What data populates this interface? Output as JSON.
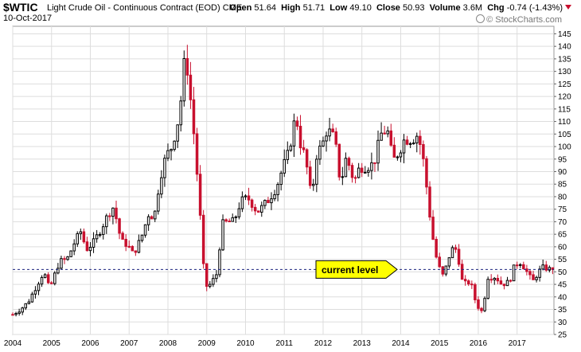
{
  "header": {
    "symbol": "$WTIC",
    "description": "Light Crude Oil - Continuous Contract (EOD)",
    "exchange": "CME",
    "date": "10-Oct-2017",
    "open_label": "Open",
    "open": "51.64",
    "high_label": "High",
    "high": "51.71",
    "low_label": "Low",
    "low": "49.10",
    "close_label": "Close",
    "close": "50.93",
    "volume_label": "Volume",
    "volume": "3.6M",
    "chg_label": "Chg",
    "chg": "-0.74 (-1.43%)",
    "brand": "© StockCharts.com"
  },
  "annotation": {
    "text": "current level",
    "level": 50.93
  },
  "colors": {
    "up": "#000000",
    "down": "#c8102e",
    "callout": "#ffff00",
    "grid": "#dddddd",
    "level_line": "#1a237e"
  },
  "chart_data": {
    "type": "candlestick",
    "interval": "monthly",
    "series_name": "$WTIC",
    "ylim": [
      25,
      148
    ],
    "y_ticks": [
      25,
      30,
      35,
      40,
      45,
      50,
      55,
      60,
      65,
      70,
      75,
      80,
      85,
      90,
      95,
      100,
      105,
      110,
      115,
      120,
      125,
      130,
      135,
      140,
      145
    ],
    "x_labels": [
      "2004",
      "2005",
      "2006",
      "2007",
      "2008",
      "2009",
      "2010",
      "2011",
      "2012",
      "2013",
      "2014",
      "2015",
      "2016",
      "2017"
    ],
    "x_start": 2004.0,
    "x_end": 2017.95,
    "close_points": [
      [
        2004.0,
        33
      ],
      [
        2004.2,
        35
      ],
      [
        2004.4,
        38
      ],
      [
        2004.6,
        44
      ],
      [
        2004.8,
        50
      ],
      [
        2004.95,
        43
      ],
      [
        2005.2,
        54
      ],
      [
        2005.4,
        55
      ],
      [
        2005.6,
        62
      ],
      [
        2005.75,
        66
      ],
      [
        2005.9,
        59
      ],
      [
        2006.1,
        62
      ],
      [
        2006.3,
        68
      ],
      [
        2006.5,
        74
      ],
      [
        2006.6,
        76
      ],
      [
        2006.8,
        62
      ],
      [
        2006.95,
        61
      ],
      [
        2007.1,
        57
      ],
      [
        2007.3,
        63
      ],
      [
        2007.5,
        73
      ],
      [
        2007.65,
        72
      ],
      [
        2007.8,
        88
      ],
      [
        2007.95,
        96
      ],
      [
        2008.1,
        100
      ],
      [
        2008.3,
        113
      ],
      [
        2008.45,
        138
      ],
      [
        2008.55,
        124
      ],
      [
        2008.7,
        100
      ],
      [
        2008.85,
        68
      ],
      [
        2008.95,
        44
      ],
      [
        2009.1,
        45
      ],
      [
        2009.25,
        49
      ],
      [
        2009.4,
        69
      ],
      [
        2009.55,
        70
      ],
      [
        2009.7,
        70
      ],
      [
        2009.85,
        77
      ],
      [
        2009.95,
        79
      ],
      [
        2010.1,
        79
      ],
      [
        2010.3,
        74
      ],
      [
        2010.45,
        76
      ],
      [
        2010.6,
        79
      ],
      [
        2010.8,
        84
      ],
      [
        2010.95,
        91
      ],
      [
        2011.1,
        97
      ],
      [
        2011.3,
        113
      ],
      [
        2011.4,
        102
      ],
      [
        2011.55,
        95
      ],
      [
        2011.7,
        79
      ],
      [
        2011.85,
        99
      ],
      [
        2011.95,
        99
      ],
      [
        2012.1,
        107
      ],
      [
        2012.3,
        103
      ],
      [
        2012.45,
        85
      ],
      [
        2012.6,
        96
      ],
      [
        2012.8,
        86
      ],
      [
        2012.95,
        92
      ],
      [
        2013.1,
        92
      ],
      [
        2013.3,
        93
      ],
      [
        2013.5,
        105
      ],
      [
        2013.65,
        107
      ],
      [
        2013.8,
        94
      ],
      [
        2013.95,
        98
      ],
      [
        2014.1,
        103
      ],
      [
        2014.3,
        103
      ],
      [
        2014.45,
        105
      ],
      [
        2014.6,
        93
      ],
      [
        2014.8,
        66
      ],
      [
        2014.95,
        53
      ],
      [
        2015.1,
        48
      ],
      [
        2015.3,
        59
      ],
      [
        2015.45,
        59
      ],
      [
        2015.6,
        45
      ],
      [
        2015.8,
        46
      ],
      [
        2015.95,
        37
      ],
      [
        2016.1,
        34
      ],
      [
        2016.25,
        48
      ],
      [
        2016.45,
        48
      ],
      [
        2016.6,
        45
      ],
      [
        2016.8,
        46
      ],
      [
        2016.95,
        53
      ],
      [
        2017.1,
        54
      ],
      [
        2017.25,
        50
      ],
      [
        2017.4,
        46
      ],
      [
        2017.55,
        50
      ],
      [
        2017.7,
        52
      ],
      [
        2017.8,
        51
      ]
    ],
    "candles": [],
    "current_level": 50.93
  }
}
